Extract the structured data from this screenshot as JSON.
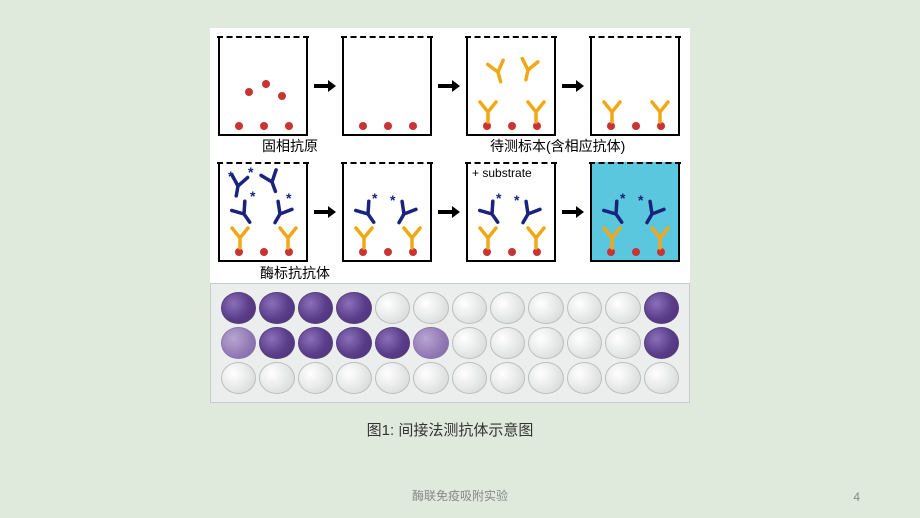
{
  "slide": {
    "background_color": "#dfeadd",
    "footer_title": "酶联免疫吸附实验",
    "page_number": "4",
    "caption": "图1: 间接法测抗体示意图"
  },
  "diagram": {
    "labels": {
      "solid_antigen": "固相抗原",
      "sample": "待测标本(含相应抗体)",
      "enzyme_ab": "酶标抗抗体",
      "substrate": "+ substrate"
    },
    "colors": {
      "antigen_dot": "#c93333",
      "primary_ab": "#f0a818",
      "secondary_ab": "#1a237e",
      "arrow": "#000000",
      "substrate_bg": "#5bc7de",
      "well_border": "#000000"
    }
  },
  "plate": {
    "rows": 3,
    "cols": 12,
    "filled_pattern": [
      [
        1,
        1,
        1,
        1,
        0,
        0,
        0,
        0,
        0,
        0,
        0,
        1
      ],
      [
        2,
        1,
        1,
        1,
        1,
        2,
        0,
        0,
        0,
        0,
        0,
        1
      ],
      [
        0,
        0,
        0,
        0,
        0,
        0,
        0,
        0,
        0,
        0,
        0,
        0
      ]
    ],
    "colors": {
      "empty": "#e3e4e4",
      "filled": "#5a3d8a",
      "light": "#9179b5",
      "plate_bg": "#eceeee"
    }
  }
}
